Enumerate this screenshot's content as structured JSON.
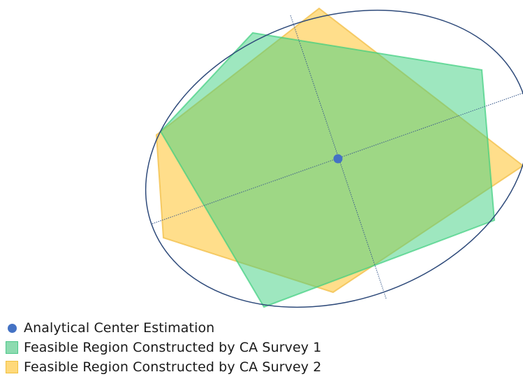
{
  "legend": {
    "items": [
      {
        "label": "Analytical Center Estimation",
        "marker": "dot",
        "color": "#4472c4"
      },
      {
        "label": "Feasible Region Constructed by CA Survey 1",
        "marker": "square",
        "color": "#8ddbb0",
        "border": "#4cc789"
      },
      {
        "label": "Feasible Region Constructed by CA Survey 2",
        "marker": "square",
        "color": "#ffd97a",
        "border": "#f0c040"
      }
    ]
  },
  "colors": {
    "ellipse_stroke": "#2e4a7a",
    "axis_stroke": "#3a5a8c",
    "region1_fill": "#3ecf7f",
    "region2_fill": "#ffc83d",
    "center_dot": "#4472c4"
  }
}
